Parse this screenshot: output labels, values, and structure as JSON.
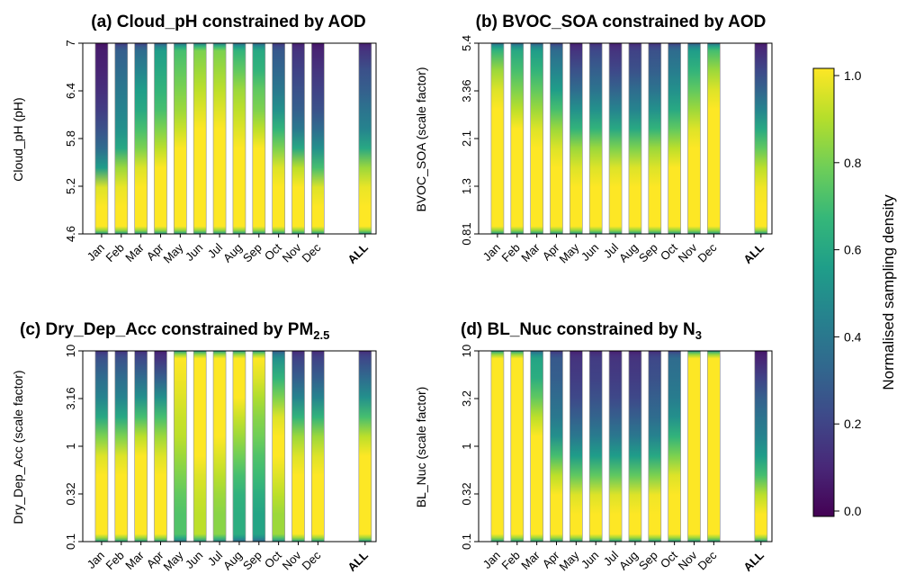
{
  "colorbar": {
    "label": "Normalised sampling density",
    "ticks": [
      "0.0",
      "0.2",
      "0.4",
      "0.6",
      "0.8",
      "1.0"
    ],
    "palette": [
      "#440154",
      "#482878",
      "#3e4989",
      "#31688e",
      "#26828e",
      "#1f9e89",
      "#35b779",
      "#6ece58",
      "#b5de2b",
      "#fde725"
    ]
  },
  "chart_data": [
    {
      "type": "heatmap",
      "title_main": "(a) Cloud_pH constrained by AOD",
      "title_sub": "",
      "title_tail": "",
      "ylabel": "Cloud_pH  (pH)",
      "y_ticks": [
        "4.6",
        "5.2",
        "5.8",
        "6.4",
        "7"
      ],
      "ylim": [
        "4.6",
        "7"
      ],
      "categories": [
        "Jan",
        "Feb",
        "Mar",
        "Apr",
        "May",
        "Jun",
        "Jul",
        "Aug",
        "Sep",
        "Oct",
        "Nov",
        "Dec",
        "ALL"
      ],
      "density_profiles": [
        [
          1.0,
          1.0,
          0.95,
          0.55,
          0.35,
          0.25,
          0.18,
          0.13,
          0.1,
          0.08
        ],
        [
          1.0,
          1.0,
          0.97,
          0.85,
          0.6,
          0.5,
          0.45,
          0.4,
          0.35,
          0.3
        ],
        [
          1.0,
          1.0,
          1.0,
          0.95,
          0.8,
          0.7,
          0.6,
          0.55,
          0.45,
          0.35
        ],
        [
          1.0,
          1.0,
          1.0,
          1.0,
          0.9,
          0.8,
          0.7,
          0.65,
          0.6,
          0.55
        ],
        [
          1.0,
          1.0,
          1.0,
          1.0,
          1.0,
          0.92,
          0.85,
          0.8,
          0.75,
          0.7
        ],
        [
          1.0,
          1.0,
          1.0,
          1.0,
          1.0,
          1.0,
          0.95,
          0.9,
          0.85,
          0.8
        ],
        [
          1.0,
          1.0,
          1.0,
          1.0,
          1.0,
          1.0,
          0.95,
          0.9,
          0.85,
          0.8
        ],
        [
          1.0,
          1.0,
          1.0,
          1.0,
          1.0,
          0.95,
          0.9,
          0.85,
          0.75,
          0.65
        ],
        [
          1.0,
          1.0,
          1.0,
          1.0,
          1.0,
          0.9,
          0.8,
          0.75,
          0.65,
          0.6
        ],
        [
          1.0,
          1.0,
          1.0,
          0.95,
          0.8,
          0.65,
          0.5,
          0.4,
          0.33,
          0.28
        ],
        [
          1.0,
          1.0,
          1.0,
          0.9,
          0.6,
          0.4,
          0.3,
          0.25,
          0.2,
          0.15
        ],
        [
          1.0,
          1.0,
          0.95,
          0.7,
          0.5,
          0.35,
          0.25,
          0.2,
          0.15,
          0.1
        ],
        [
          1.0,
          1.0,
          0.97,
          0.85,
          0.6,
          0.45,
          0.38,
          0.3,
          0.25,
          0.15
        ]
      ]
    },
    {
      "type": "heatmap",
      "title_main": "(b) BVOC_SOA constrained by AOD",
      "title_sub": "",
      "title_tail": "",
      "ylabel": "BVOC_SOA  (scale factor)",
      "y_ticks": [
        "0.81",
        "1.3",
        "2.1",
        "3.36",
        "5.4"
      ],
      "ylim": [
        "0.81",
        "5.4"
      ],
      "categories": [
        "Jan",
        "Feb",
        "Mar",
        "Apr",
        "May",
        "Jun",
        "Jul",
        "Aug",
        "Sep",
        "Oct",
        "Nov",
        "Dec",
        "ALL"
      ],
      "density_profiles": [
        [
          1.0,
          1.0,
          1.0,
          1.0,
          1.0,
          1.0,
          1.0,
          0.95,
          0.85,
          0.65
        ],
        [
          1.0,
          1.0,
          1.0,
          1.0,
          1.0,
          1.0,
          0.9,
          0.8,
          0.7,
          0.6
        ],
        [
          1.0,
          1.0,
          1.0,
          1.0,
          1.0,
          0.95,
          0.85,
          0.75,
          0.65,
          0.55
        ],
        [
          1.0,
          1.0,
          1.0,
          1.0,
          0.95,
          0.85,
          0.7,
          0.55,
          0.45,
          0.35
        ],
        [
          1.0,
          1.0,
          1.0,
          0.95,
          0.85,
          0.65,
          0.5,
          0.35,
          0.25,
          0.15
        ],
        [
          1.0,
          1.0,
          1.0,
          0.95,
          0.85,
          0.65,
          0.5,
          0.38,
          0.3,
          0.22
        ],
        [
          1.0,
          1.0,
          1.0,
          0.95,
          0.8,
          0.6,
          0.45,
          0.32,
          0.22,
          0.15
        ],
        [
          1.0,
          1.0,
          1.0,
          0.95,
          0.8,
          0.6,
          0.45,
          0.35,
          0.25,
          0.2
        ],
        [
          1.0,
          1.0,
          1.0,
          0.95,
          0.85,
          0.65,
          0.5,
          0.38,
          0.3,
          0.25
        ],
        [
          1.0,
          1.0,
          1.0,
          1.0,
          0.9,
          0.75,
          0.6,
          0.5,
          0.42,
          0.35
        ],
        [
          1.0,
          1.0,
          1.0,
          1.0,
          1.0,
          0.95,
          0.85,
          0.75,
          0.65,
          0.55
        ],
        [
          1.0,
          1.0,
          1.0,
          1.0,
          1.0,
          1.0,
          1.0,
          0.95,
          0.85,
          0.7
        ],
        [
          1.0,
          1.0,
          0.98,
          0.9,
          0.75,
          0.6,
          0.45,
          0.32,
          0.22,
          0.12
        ]
      ]
    },
    {
      "type": "heatmap",
      "title_main": "(c) Dry_Dep_Acc constrained by PM",
      "title_sub": "2.5",
      "title_tail": "",
      "ylabel": "Dry_Dep_Acc  (scale factor)",
      "y_ticks": [
        "0.1",
        "0.32",
        "1",
        "3.16",
        "10"
      ],
      "ylim": [
        "0.1",
        "10"
      ],
      "categories": [
        "Jan",
        "Feb",
        "Mar",
        "Apr",
        "May",
        "Jun",
        "Jul",
        "Aug",
        "Sep",
        "Oct",
        "Nov",
        "Dec",
        "ALL"
      ],
      "density_profiles": [
        [
          1.0,
          1.0,
          1.0,
          1.0,
          0.95,
          0.8,
          0.6,
          0.45,
          0.35,
          0.25
        ],
        [
          1.0,
          1.0,
          1.0,
          1.0,
          0.95,
          0.8,
          0.6,
          0.45,
          0.35,
          0.25
        ],
        [
          1.0,
          1.0,
          1.0,
          1.0,
          1.0,
          0.9,
          0.7,
          0.5,
          0.35,
          0.22
        ],
        [
          1.0,
          1.0,
          1.0,
          1.0,
          0.95,
          0.85,
          0.7,
          0.5,
          0.3,
          0.15
        ],
        [
          0.72,
          0.72,
          0.75,
          0.8,
          0.85,
          0.9,
          0.92,
          0.95,
          0.98,
          1.0
        ],
        [
          0.9,
          0.9,
          0.92,
          0.95,
          1.0,
          1.0,
          1.0,
          1.0,
          1.0,
          1.0
        ],
        [
          0.82,
          0.82,
          0.85,
          0.9,
          0.95,
          1.0,
          1.0,
          1.0,
          1.0,
          1.0
        ],
        [
          0.62,
          0.62,
          0.64,
          0.7,
          0.78,
          0.85,
          0.92,
          1.0,
          1.0,
          1.0
        ],
        [
          0.58,
          0.58,
          0.62,
          0.68,
          0.72,
          0.78,
          0.82,
          0.88,
          0.95,
          1.0
        ],
        [
          0.85,
          0.85,
          0.9,
          0.95,
          1.0,
          1.0,
          0.95,
          0.8,
          0.65,
          0.5
        ],
        [
          1.0,
          1.0,
          1.0,
          1.0,
          0.95,
          0.85,
          0.65,
          0.45,
          0.3,
          0.2
        ],
        [
          1.0,
          1.0,
          1.0,
          1.0,
          0.95,
          0.85,
          0.65,
          0.45,
          0.3,
          0.2
        ],
        [
          1.0,
          1.0,
          1.0,
          1.0,
          1.0,
          0.9,
          0.7,
          0.5,
          0.35,
          0.22
        ]
      ]
    },
    {
      "type": "heatmap",
      "title_main": "(d) BL_Nuc constrained by N",
      "title_sub": "3",
      "title_tail": "",
      "ylabel": "BL_Nuc  (scale factor)",
      "y_ticks": [
        "0.1",
        "0.32",
        "1",
        "3.2",
        "10"
      ],
      "ylim": [
        "0.1",
        "10"
      ],
      "categories": [
        "Jan",
        "Feb",
        "Mar",
        "Apr",
        "May",
        "Jun",
        "Jul",
        "Aug",
        "Sep",
        "Oct",
        "Nov",
        "Dec",
        "ALL"
      ],
      "density_profiles": [
        [
          1.0,
          1.0,
          1.0,
          1.0,
          1.0,
          1.0,
          1.0,
          1.0,
          1.0,
          1.0
        ],
        [
          1.0,
          1.0,
          1.0,
          1.0,
          1.0,
          1.0,
          1.0,
          1.0,
          1.0,
          1.0
        ],
        [
          1.0,
          1.0,
          1.0,
          1.0,
          1.0,
          1.0,
          0.9,
          0.75,
          0.62,
          0.58
        ],
        [
          1.0,
          1.0,
          1.0,
          0.9,
          0.7,
          0.5,
          0.4,
          0.35,
          0.3,
          0.28
        ],
        [
          1.0,
          1.0,
          0.95,
          0.75,
          0.55,
          0.4,
          0.3,
          0.22,
          0.18,
          0.15
        ],
        [
          1.0,
          1.0,
          0.95,
          0.75,
          0.55,
          0.42,
          0.32,
          0.25,
          0.2,
          0.18
        ],
        [
          1.0,
          1.0,
          0.95,
          0.75,
          0.55,
          0.4,
          0.3,
          0.22,
          0.18,
          0.15
        ],
        [
          1.0,
          1.0,
          0.95,
          0.75,
          0.55,
          0.4,
          0.3,
          0.22,
          0.18,
          0.15
        ],
        [
          1.0,
          1.0,
          0.98,
          0.8,
          0.6,
          0.45,
          0.35,
          0.3,
          0.25,
          0.22
        ],
        [
          1.0,
          1.0,
          1.0,
          0.95,
          0.8,
          0.65,
          0.5,
          0.42,
          0.38,
          0.35
        ],
        [
          1.0,
          1.0,
          1.0,
          1.0,
          1.0,
          1.0,
          1.0,
          1.0,
          1.0,
          1.0
        ],
        [
          1.0,
          1.0,
          1.0,
          1.0,
          1.0,
          1.0,
          1.0,
          1.0,
          1.0,
          1.0
        ],
        [
          1.0,
          1.0,
          0.9,
          0.7,
          0.55,
          0.45,
          0.38,
          0.3,
          0.2,
          0.1
        ]
      ]
    }
  ]
}
